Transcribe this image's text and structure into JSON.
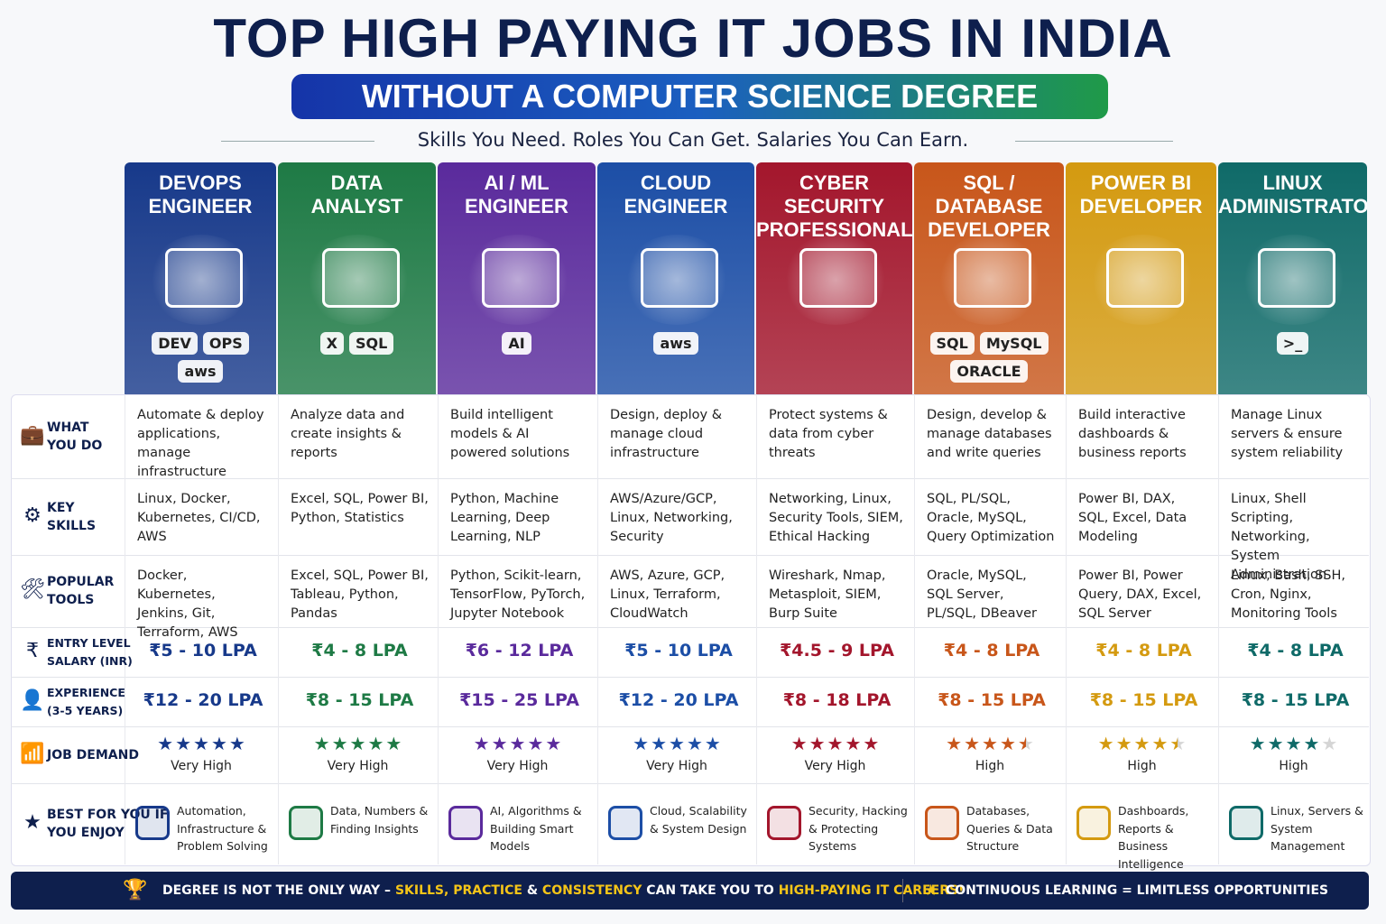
{
  "header": {
    "title": "TOP HIGH PAYING IT JOBS IN INDIA",
    "subtitle": "WITHOUT A COMPUTER SCIENCE DEGREE",
    "tagline": "Skills You Need.  Roles You Can Get. Salaries You Can Earn."
  },
  "rows": [
    [
      "WHAT",
      "YOU DO"
    ],
    [
      "KEY",
      "SKILLS"
    ],
    [
      "POPULAR",
      "TOOLS"
    ],
    [
      "ENTRY LEVEL",
      "SALARY (INR)"
    ],
    [
      "EXPERIENCE",
      "(3-5 YEARS)"
    ],
    [
      "JOB DEMAND"
    ],
    [
      "BEST FOR YOU IF",
      "YOU ENJOY"
    ]
  ],
  "columns": [
    {
      "title": [
        "DEVOPS",
        "ENGINEER"
      ],
      "icon_labels": [
        "DEV",
        "OPS",
        "aws"
      ],
      "color": "#17398a",
      "what": "Automate & deploy applications, manage infrastructure",
      "skills": "Linux, Docker, Kubernetes, CI/CD, AWS",
      "tools": "Docker, Kubernetes, Jenkins, Git, Terraform, AWS",
      "entry": "₹5 - 10 LPA",
      "experience": "₹12 - 20 LPA",
      "rating": 5,
      "demand": "Very High",
      "best": "Automation, Infrastructure & Problem Solving"
    },
    {
      "title": [
        "DATA",
        "ANALYST"
      ],
      "icon_labels": [
        "X",
        "SQL"
      ],
      "color": "#1e7a45",
      "what": "Analyze data and create insights & reports",
      "skills": "Excel, SQL, Power BI, Python, Statistics",
      "tools": "Excel, SQL, Power BI, Tableau, Python, Pandas",
      "entry": "₹4 - 8 LPA",
      "experience": "₹8 - 15 LPA",
      "rating": 5,
      "demand": "Very High",
      "best": "Data, Numbers & Finding Insights"
    },
    {
      "title": [
        "AI / ML",
        "ENGINEER"
      ],
      "icon_labels": [
        "AI"
      ],
      "color": "#5a2a9c",
      "what": "Build intelligent models & AI powered solutions",
      "skills": "Python, Machine Learning, Deep Learning, NLP",
      "tools": "Python, Scikit-learn, TensorFlow, PyTorch, Jupyter Notebook",
      "entry": "₹6 - 12 LPA",
      "experience": "₹15 - 25 LPA",
      "rating": 5,
      "demand": "Very High",
      "best": "AI, Algorithms & Building Smart Models"
    },
    {
      "title": [
        "CLOUD",
        "ENGINEER"
      ],
      "icon_labels": [
        "aws"
      ],
      "color": "#1c4ea6",
      "what": "Design, deploy & manage cloud infrastructure",
      "skills": "AWS/Azure/GCP, Linux, Networking, Security",
      "tools": "AWS, Azure, GCP, Linux, Terraform, CloudWatch",
      "entry": "₹5 - 10 LPA",
      "experience": "₹12 - 20 LPA",
      "rating": 5,
      "demand": "Very High",
      "best": "Cloud, Scalability & System Design"
    },
    {
      "title": [
        "CYBER SECURITY",
        "PROFESSIONAL"
      ],
      "icon_labels": [],
      "color": "#a3162c",
      "what": "Protect systems & data from cyber threats",
      "skills": "Networking, Linux, Security Tools, SIEM, Ethical Hacking",
      "tools": "Wireshark, Nmap, Metasploit, SIEM, Burp Suite",
      "entry": "₹4.5 - 9 LPA",
      "experience": "₹8 - 18 LPA",
      "rating": 5,
      "demand": "Very High",
      "best": "Security, Hacking & Protecting Systems"
    },
    {
      "title": [
        "SQL / DATABASE",
        "DEVELOPER"
      ],
      "icon_labels": [
        "SQL",
        "MySQL",
        "ORACLE"
      ],
      "color": "#c8561a",
      "what": "Design, develop & manage databases and write queries",
      "skills": "SQL, PL/SQL, Oracle, MySQL, Query Optimization",
      "tools": "Oracle, MySQL, SQL Server, PL/SQL, DBeaver",
      "entry": "₹4 - 8 LPA",
      "experience": "₹8 - 15 LPA",
      "rating": 4.5,
      "demand": "High",
      "best": "Databases, Queries & Data Structure"
    },
    {
      "title": [
        "POWER BI",
        "DEVELOPER"
      ],
      "icon_labels": [],
      "color": "#d49a10",
      "what": "Build interactive dashboards & business reports",
      "skills": "Power BI, DAX, SQL, Excel, Data Modeling",
      "tools": "Power BI, Power Query, DAX, Excel, SQL Server",
      "entry": "₹4 - 8 LPA",
      "experience": "₹8 - 15 LPA",
      "rating": 4.5,
      "demand": "High",
      "best": "Dashboards, Reports & Business Intelligence"
    },
    {
      "title": [
        "LINUX",
        "ADMINISTRATOR"
      ],
      "icon_labels": [
        ">_"
      ],
      "color": "#0f6a68",
      "what": "Manage Linux servers & ensure system reliability",
      "skills": "Linux, Shell Scripting, Networking, System Administration",
      "tools": "Linux, Bash, SSH, Cron, Nginx, Monitoring Tools",
      "entry": "₹4 - 8 LPA",
      "experience": "₹8 - 15 LPA",
      "rating": 4,
      "demand": "High",
      "best": "Linux, Servers & System Management"
    }
  ],
  "footer": {
    "left": [
      "DEGREE IS NOT THE ONLY WAY – ",
      "SKILLS, PRACTICE",
      " & ",
      "CONSISTENCY",
      " CAN TAKE YOU TO ",
      "HIGH-PAYING IT CAREERS!"
    ],
    "right": "CONTINUOUS LEARNING = LIMITLESS OPPORTUNITIES"
  }
}
